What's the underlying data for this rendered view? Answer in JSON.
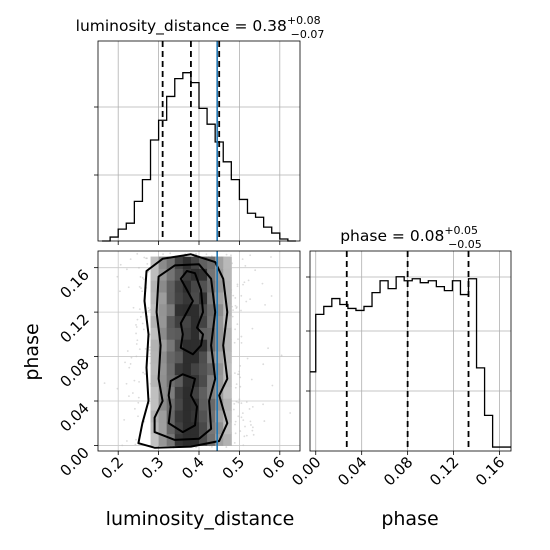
{
  "chart_data": [
    {
      "type": "histogram",
      "panel": "luminosity_distance marginal",
      "title_param": "luminosity_distance",
      "title_median": "0.38",
      "title_plus": "+0.08",
      "title_minus": "−0.07",
      "xlim": [
        0.15,
        0.65
      ],
      "bin_edges": [
        0.16,
        0.18,
        0.2,
        0.22,
        0.24,
        0.26,
        0.28,
        0.3,
        0.32,
        0.34,
        0.36,
        0.38,
        0.4,
        0.42,
        0.44,
        0.46,
        0.48,
        0.5,
        0.52,
        0.54,
        0.56,
        0.58,
        0.6,
        0.62,
        0.64
      ],
      "heights": [
        0.0,
        0.02,
        0.06,
        0.09,
        0.2,
        0.31,
        0.51,
        0.61,
        0.73,
        0.82,
        0.85,
        0.8,
        0.67,
        0.59,
        0.5,
        0.4,
        0.31,
        0.21,
        0.14,
        0.12,
        0.07,
        0.04,
        0.01,
        0.0
      ],
      "quantile_lines": [
        0.31,
        0.38,
        0.45
      ],
      "truth": 0.445
    },
    {
      "type": "heatmap_contour",
      "panel": "luminosity_distance vs phase",
      "xlabel": "luminosity_distance",
      "ylabel": "phase",
      "xlim": [
        0.15,
        0.65
      ],
      "ylim": [
        -0.005,
        0.175
      ],
      "xticks": [
        "0.2",
        "0.3",
        "0.4",
        "0.5",
        "0.6"
      ],
      "xtick_values": [
        0.2,
        0.3,
        0.4,
        0.5,
        0.6
      ],
      "yticks": [
        "0.00",
        "0.04",
        "0.08",
        "0.12",
        "0.16"
      ],
      "ytick_values": [
        0.0,
        0.04,
        0.08,
        0.12,
        0.16
      ],
      "truth_x": 0.445
    },
    {
      "type": "histogram",
      "panel": "phase marginal",
      "title_param": "phase",
      "title_median": "0.08",
      "title_plus": "+0.05",
      "title_minus": "−0.05",
      "xlabel": "phase",
      "xlim": [
        -0.005,
        0.17
      ],
      "xticks": [
        "0.00",
        "0.04",
        "0.08",
        "0.12",
        "0.16"
      ],
      "xtick_values": [
        0.0,
        0.04,
        0.08,
        0.12,
        0.16
      ],
      "bin_edges": [
        -0.005,
        0.0,
        0.007,
        0.014,
        0.021,
        0.028,
        0.035,
        0.042,
        0.049,
        0.056,
        0.063,
        0.07,
        0.077,
        0.084,
        0.091,
        0.098,
        0.105,
        0.112,
        0.119,
        0.126,
        0.133,
        0.14,
        0.147,
        0.154,
        0.161,
        0.17
      ],
      "heights": [
        0.4,
        0.69,
        0.73,
        0.77,
        0.74,
        0.72,
        0.71,
        0.73,
        0.8,
        0.86,
        0.82,
        0.88,
        0.86,
        0.87,
        0.85,
        0.86,
        0.83,
        0.81,
        0.86,
        0.79,
        0.87,
        0.42,
        0.18,
        0.02,
        0.02
      ],
      "quantile_lines": [
        0.027,
        0.08,
        0.133
      ]
    }
  ]
}
